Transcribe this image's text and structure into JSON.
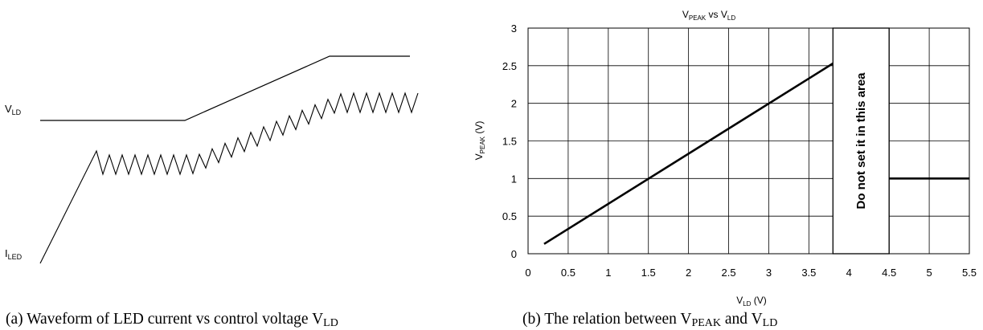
{
  "panel_a": {
    "vld_label": {
      "main": "V",
      "sub": "LD"
    },
    "iled_label": {
      "main": "I",
      "sub": "LED"
    },
    "caption": {
      "text": "(a) Waveform of LED current vs control voltage V",
      "sub": "LD"
    }
  },
  "panel_b": {
    "caption": {
      "text": "(b) The relation between V",
      "sub1": "PEAK",
      "mid": " and V",
      "sub2": "LD"
    }
  },
  "chart_data": {
    "type": "line",
    "title": {
      "a": "V",
      "a_sub": "PEAK",
      "mid": " vs V",
      "b_sub": "LD"
    },
    "xlabel": {
      "main": "V",
      "sub": "LD",
      "unit": " (V)"
    },
    "ylabel": {
      "main": "V",
      "sub": "PEAK",
      "unit": " (V)"
    },
    "xlim": [
      0,
      5.5
    ],
    "ylim": [
      0,
      3
    ],
    "x_ticks": [
      0,
      0.5,
      1,
      1.5,
      2,
      2.5,
      3,
      3.5,
      4,
      4.5,
      5,
      5.5
    ],
    "x_tick_labels": [
      "0",
      "0.5",
      "1",
      "1.5",
      "2",
      "2.5",
      "3",
      "3.5",
      "4",
      "4.5",
      "5",
      "5.5"
    ],
    "y_ticks": [
      0,
      0.5,
      1,
      1.5,
      2,
      2.5,
      3
    ],
    "y_tick_labels": [
      "0",
      "0.5",
      "1",
      "1.5",
      "2",
      "2.5",
      "3"
    ],
    "grid": true,
    "series": [
      {
        "x": [
          0.2,
          3.8
        ],
        "y": [
          0.13,
          2.53
        ]
      },
      {
        "x": [
          4.5,
          5.5
        ],
        "y": [
          1.0,
          1.0
        ]
      }
    ],
    "forbidden_region": {
      "x": [
        3.8,
        4.5
      ],
      "label": "Do not set it in this area"
    }
  }
}
